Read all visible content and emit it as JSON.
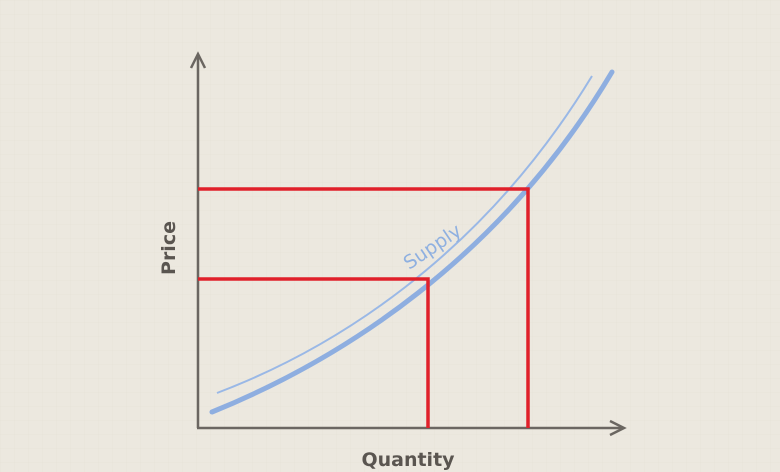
{
  "axes": {
    "y_label": "Price",
    "x_label": "Quantity"
  },
  "curve": {
    "label": "Supply"
  }
}
